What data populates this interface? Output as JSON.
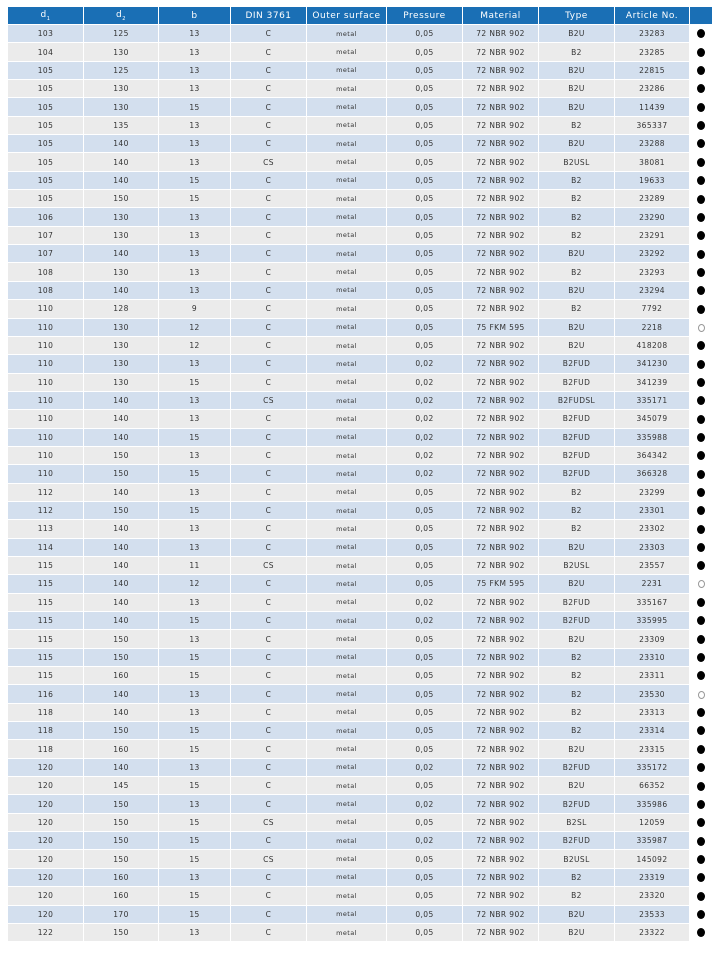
{
  "headers": [
    {
      "main": "d",
      "sub": "1"
    },
    {
      "main": "d",
      "sub": "2"
    },
    {
      "main": "b",
      "sub": ""
    },
    {
      "main": "DIN 3761",
      "sub": ""
    },
    {
      "main": "Outer surface",
      "sub": ""
    },
    {
      "main": "Pressure",
      "sub": ""
    },
    {
      "main": "Material",
      "sub": ""
    },
    {
      "main": "Type",
      "sub": ""
    },
    {
      "main": "Article No.",
      "sub": ""
    },
    {
      "main": "",
      "sub": ""
    }
  ],
  "availability_icons": {
    "filled": "filled-circle-icon",
    "open": "open-circle-icon"
  },
  "colors": {
    "header": "#1a6fb5",
    "row_odd": "#d3dfee",
    "row_even": "#ebebeb"
  },
  "rows": [
    [
      "103",
      "125",
      "13",
      "C",
      "metal",
      "0,05",
      "72 NBR 902",
      "B2U",
      "23283",
      "filled"
    ],
    [
      "104",
      "130",
      "13",
      "C",
      "metal",
      "0,05",
      "72 NBR 902",
      "B2",
      "23285",
      "filled"
    ],
    [
      "105",
      "125",
      "13",
      "C",
      "metal",
      "0,05",
      "72 NBR 902",
      "B2U",
      "22815",
      "filled"
    ],
    [
      "105",
      "130",
      "13",
      "C",
      "metal",
      "0,05",
      "72 NBR 902",
      "B2U",
      "23286",
      "filled"
    ],
    [
      "105",
      "130",
      "15",
      "C",
      "metal",
      "0,05",
      "72 NBR 902",
      "B2U",
      "11439",
      "filled"
    ],
    [
      "105",
      "135",
      "13",
      "C",
      "metal",
      "0,05",
      "72 NBR 902",
      "B2",
      "365337",
      "filled"
    ],
    [
      "105",
      "140",
      "13",
      "C",
      "metal",
      "0,05",
      "72 NBR 902",
      "B2U",
      "23288",
      "filled"
    ],
    [
      "105",
      "140",
      "13",
      "CS",
      "metal",
      "0,05",
      "72 NBR 902",
      "B2USL",
      "38081",
      "filled"
    ],
    [
      "105",
      "140",
      "15",
      "C",
      "metal",
      "0,05",
      "72 NBR 902",
      "B2",
      "19633",
      "filled"
    ],
    [
      "105",
      "150",
      "15",
      "C",
      "metal",
      "0,05",
      "72 NBR 902",
      "B2",
      "23289",
      "filled"
    ],
    [
      "106",
      "130",
      "13",
      "C",
      "metal",
      "0,05",
      "72 NBR 902",
      "B2",
      "23290",
      "filled"
    ],
    [
      "107",
      "130",
      "13",
      "C",
      "metal",
      "0,05",
      "72 NBR 902",
      "B2",
      "23291",
      "filled"
    ],
    [
      "107",
      "140",
      "13",
      "C",
      "metal",
      "0,05",
      "72 NBR 902",
      "B2U",
      "23292",
      "filled"
    ],
    [
      "108",
      "130",
      "13",
      "C",
      "metal",
      "0,05",
      "72 NBR 902",
      "B2",
      "23293",
      "filled"
    ],
    [
      "108",
      "140",
      "13",
      "C",
      "metal",
      "0,05",
      "72 NBR 902",
      "B2U",
      "23294",
      "filled"
    ],
    [
      "110",
      "128",
      "9",
      "C",
      "metal",
      "0,05",
      "72 NBR 902",
      "B2",
      "7792",
      "filled"
    ],
    [
      "110",
      "130",
      "12",
      "C",
      "metal",
      "0,05",
      "75 FKM 595",
      "B2U",
      "2218",
      "open"
    ],
    [
      "110",
      "130",
      "12",
      "C",
      "metal",
      "0,05",
      "72 NBR 902",
      "B2U",
      "418208",
      "filled"
    ],
    [
      "110",
      "130",
      "13",
      "C",
      "metal",
      "0,02",
      "72 NBR 902",
      "B2FUD",
      "341230",
      "filled"
    ],
    [
      "110",
      "130",
      "15",
      "C",
      "metal",
      "0,02",
      "72 NBR 902",
      "B2FUD",
      "341239",
      "filled"
    ],
    [
      "110",
      "140",
      "13",
      "CS",
      "metal",
      "0,02",
      "72 NBR 902",
      "B2FUDSL",
      "335171",
      "filled"
    ],
    [
      "110",
      "140",
      "13",
      "C",
      "metal",
      "0,02",
      "72 NBR 902",
      "B2FUD",
      "345079",
      "filled"
    ],
    [
      "110",
      "140",
      "15",
      "C",
      "metal",
      "0,02",
      "72 NBR 902",
      "B2FUD",
      "335988",
      "filled"
    ],
    [
      "110",
      "150",
      "13",
      "C",
      "metal",
      "0,02",
      "72 NBR 902",
      "B2FUD",
      "364342",
      "filled"
    ],
    [
      "110",
      "150",
      "15",
      "C",
      "metal",
      "0,02",
      "72 NBR 902",
      "B2FUD",
      "366328",
      "filled"
    ],
    [
      "112",
      "140",
      "13",
      "C",
      "metal",
      "0,05",
      "72 NBR 902",
      "B2",
      "23299",
      "filled"
    ],
    [
      "112",
      "150",
      "15",
      "C",
      "metal",
      "0,05",
      "72 NBR 902",
      "B2",
      "23301",
      "filled"
    ],
    [
      "113",
      "140",
      "13",
      "C",
      "metal",
      "0,05",
      "72 NBR 902",
      "B2",
      "23302",
      "filled"
    ],
    [
      "114",
      "140",
      "13",
      "C",
      "metal",
      "0,05",
      "72 NBR 902",
      "B2U",
      "23303",
      "filled"
    ],
    [
      "115",
      "140",
      "11",
      "CS",
      "metal",
      "0,05",
      "72 NBR 902",
      "B2USL",
      "23557",
      "filled"
    ],
    [
      "115",
      "140",
      "12",
      "C",
      "metal",
      "0,05",
      "75 FKM 595",
      "B2U",
      "2231",
      "open"
    ],
    [
      "115",
      "140",
      "13",
      "C",
      "metal",
      "0,02",
      "72 NBR 902",
      "B2FUD",
      "335167",
      "filled"
    ],
    [
      "115",
      "140",
      "15",
      "C",
      "metal",
      "0,02",
      "72 NBR 902",
      "B2FUD",
      "335995",
      "filled"
    ],
    [
      "115",
      "150",
      "13",
      "C",
      "metal",
      "0,05",
      "72 NBR 902",
      "B2U",
      "23309",
      "filled"
    ],
    [
      "115",
      "150",
      "15",
      "C",
      "metal",
      "0,05",
      "72 NBR 902",
      "B2",
      "23310",
      "filled"
    ],
    [
      "115",
      "160",
      "15",
      "C",
      "metal",
      "0,05",
      "72 NBR 902",
      "B2",
      "23311",
      "filled"
    ],
    [
      "116",
      "140",
      "13",
      "C",
      "metal",
      "0,05",
      "72 NBR 902",
      "B2",
      "23530",
      "open"
    ],
    [
      "118",
      "140",
      "13",
      "C",
      "metal",
      "0,05",
      "72 NBR 902",
      "B2",
      "23313",
      "filled"
    ],
    [
      "118",
      "150",
      "15",
      "C",
      "metal",
      "0,05",
      "72 NBR 902",
      "B2",
      "23314",
      "filled"
    ],
    [
      "118",
      "160",
      "15",
      "C",
      "metal",
      "0,05",
      "72 NBR 902",
      "B2U",
      "23315",
      "filled"
    ],
    [
      "120",
      "140",
      "13",
      "C",
      "metal",
      "0,02",
      "72 NBR 902",
      "B2FUD",
      "335172",
      "filled"
    ],
    [
      "120",
      "145",
      "15",
      "C",
      "metal",
      "0,05",
      "72 NBR 902",
      "B2U",
      "66352",
      "filled"
    ],
    [
      "120",
      "150",
      "13",
      "C",
      "metal",
      "0,02",
      "72 NBR 902",
      "B2FUD",
      "335986",
      "filled"
    ],
    [
      "120",
      "150",
      "15",
      "CS",
      "metal",
      "0,05",
      "72 NBR 902",
      "B2SL",
      "12059",
      "filled"
    ],
    [
      "120",
      "150",
      "15",
      "C",
      "metal",
      "0,02",
      "72 NBR 902",
      "B2FUD",
      "335987",
      "filled"
    ],
    [
      "120",
      "150",
      "15",
      "CS",
      "metal",
      "0,05",
      "72 NBR 902",
      "B2USL",
      "145092",
      "filled"
    ],
    [
      "120",
      "160",
      "13",
      "C",
      "metal",
      "0,05",
      "72 NBR 902",
      "B2",
      "23319",
      "filled"
    ],
    [
      "120",
      "160",
      "15",
      "C",
      "metal",
      "0,05",
      "72 NBR 902",
      "B2",
      "23320",
      "filled"
    ],
    [
      "120",
      "170",
      "15",
      "C",
      "metal",
      "0,05",
      "72 NBR 902",
      "B2U",
      "23533",
      "filled"
    ],
    [
      "122",
      "150",
      "13",
      "C",
      "metal",
      "0,05",
      "72 NBR 902",
      "B2U",
      "23322",
      "filled"
    ]
  ]
}
